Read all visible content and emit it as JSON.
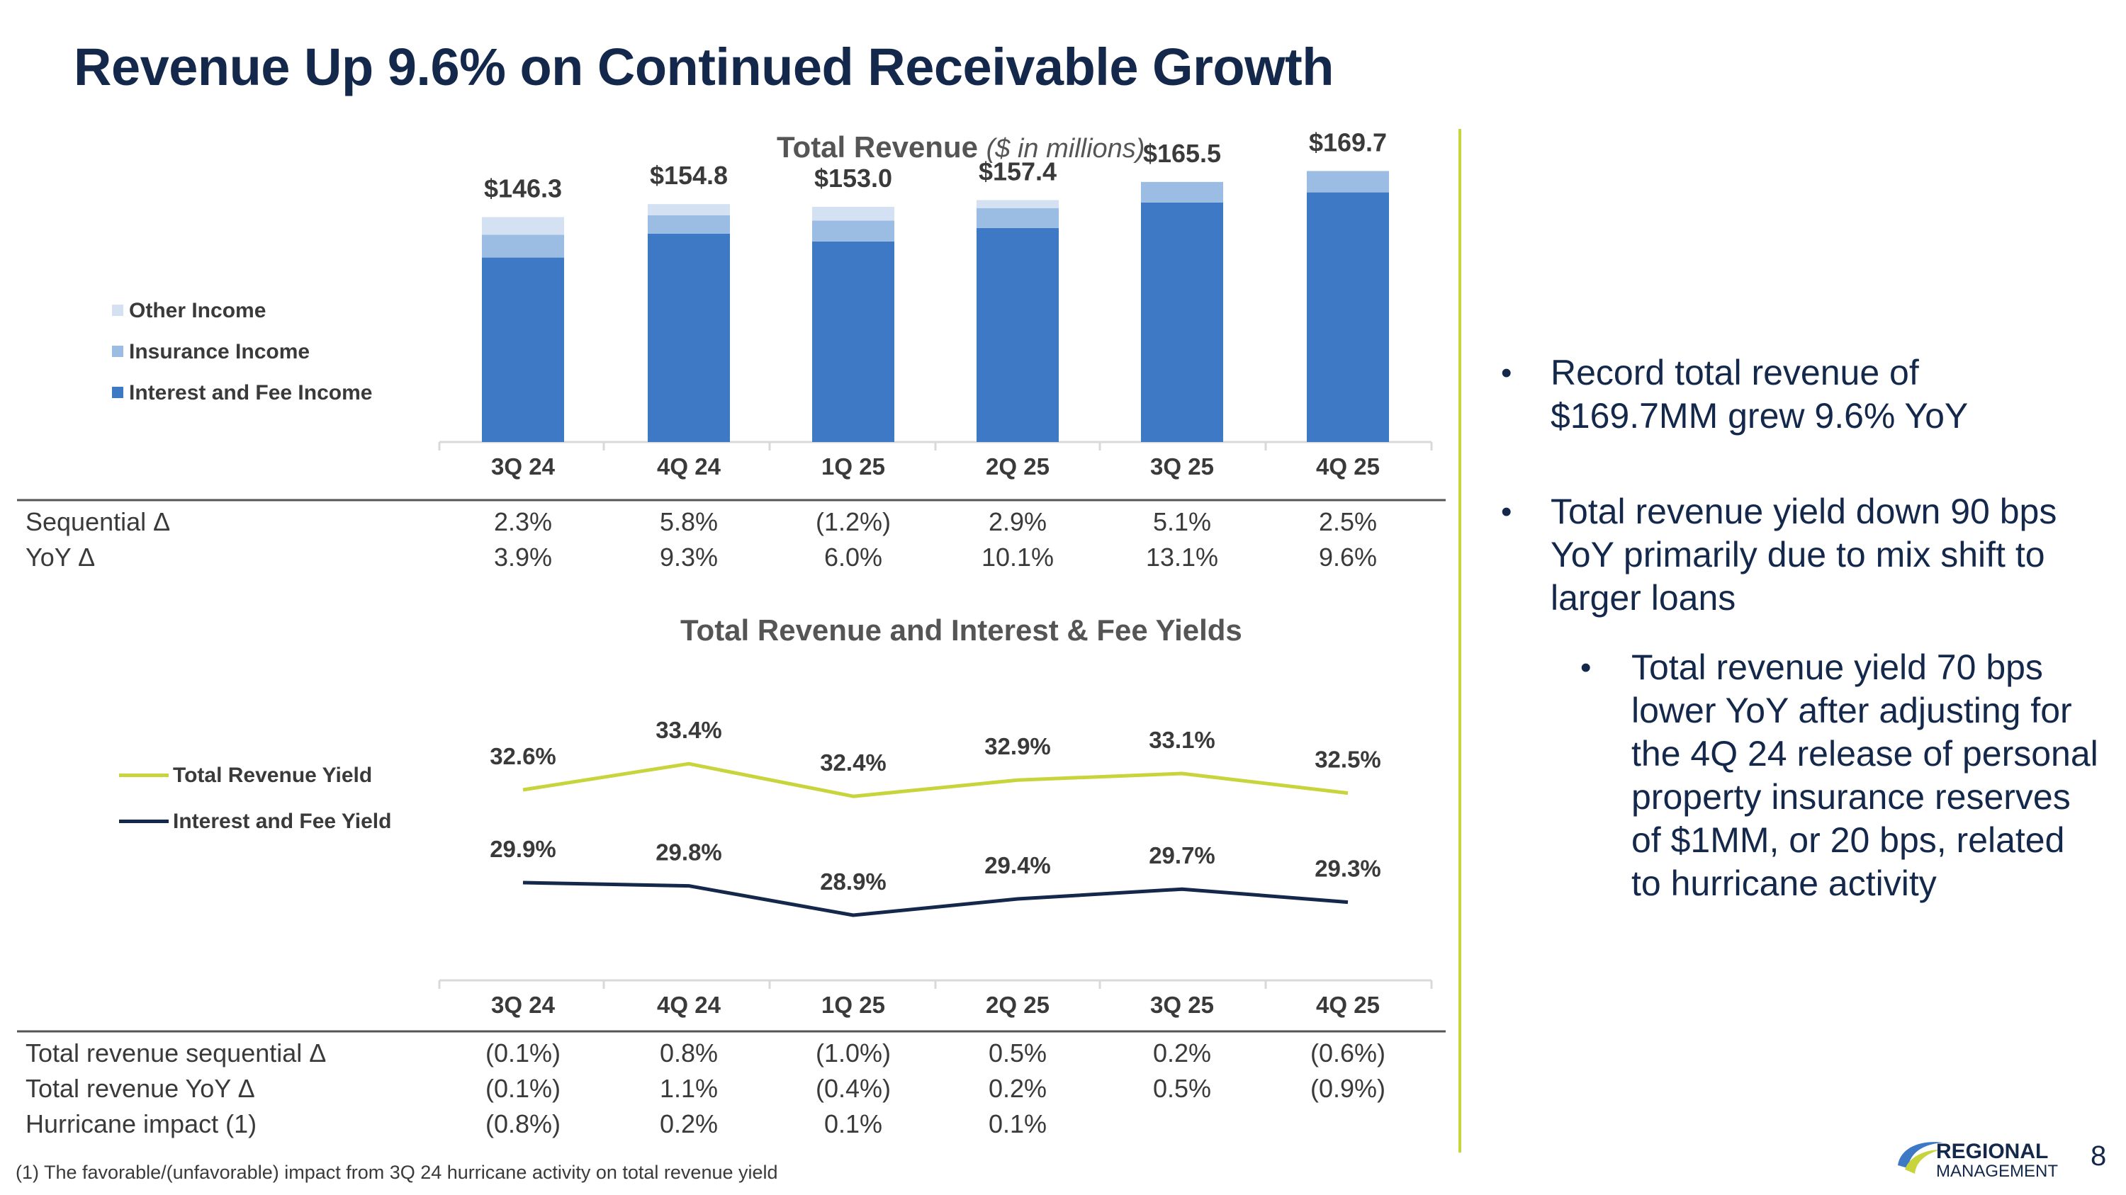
{
  "title": "Revenue Up 9.6% on Continued Receivable Growth",
  "colors": {
    "interest": "#3d79c4",
    "insurance": "#9bbde3",
    "other": "#d3e1f2",
    "total_yield_line": "#c8d43c",
    "interest_yield_line": "#14284b",
    "title": "#14284b"
  },
  "chart_data": [
    {
      "type": "bar",
      "stacked": true,
      "title": "Total Revenue",
      "subtitle": "($ in millions)",
      "categories": [
        "3Q 24",
        "4Q 24",
        "1Q 25",
        "2Q 25",
        "3Q 25",
        "4Q 25"
      ],
      "series": [
        {
          "name": "Interest and Fee Income",
          "values": [
            120.0,
            135.5,
            130.5,
            139.2,
            155.8,
            162.4
          ]
        },
        {
          "name": "Insurance Income",
          "values": [
            14.8,
            12.0,
            13.5,
            13.0,
            13.4,
            13.9
          ]
        },
        {
          "name": "Other Income",
          "values": [
            11.5,
            7.3,
            9.0,
            5.2,
            -3.7,
            -6.6
          ]
        }
      ],
      "totals": [
        146.3,
        154.8,
        153.0,
        157.4,
        165.5,
        169.7
      ],
      "total_labels": [
        "$146.3",
        "$154.8",
        "$153.0",
        "$157.4",
        "$165.5",
        "$169.7"
      ],
      "legend": [
        "Other Income",
        "Insurance Income",
        "Interest and Fee Income"
      ],
      "legend_position": "left",
      "ylim": [
        0,
        180
      ]
    },
    {
      "type": "line",
      "title": "Total Revenue and Interest & Fee Yields",
      "categories": [
        "3Q 24",
        "4Q 24",
        "1Q 25",
        "2Q 25",
        "3Q 25",
        "4Q 25"
      ],
      "series": [
        {
          "name": "Total Revenue Yield",
          "values": [
            32.6,
            33.4,
            32.4,
            32.9,
            33.1,
            32.5
          ],
          "labels": [
            "32.6%",
            "33.4%",
            "32.4%",
            "32.9%",
            "33.1%",
            "32.5%"
          ]
        },
        {
          "name": "Interest and Fee Yield",
          "values": [
            29.9,
            29.8,
            28.9,
            29.4,
            29.7,
            29.3
          ],
          "labels": [
            "29.9%",
            "29.8%",
            "28.9%",
            "29.4%",
            "29.7%",
            "29.3%"
          ]
        }
      ],
      "legend_position": "left"
    }
  ],
  "table1": {
    "rows": [
      {
        "label": "Sequential Δ",
        "values": [
          "2.3%",
          "5.8%",
          "(1.2%)",
          "2.9%",
          "5.1%",
          "2.5%"
        ]
      },
      {
        "label": "YoY Δ",
        "values": [
          "3.9%",
          "9.3%",
          "6.0%",
          "10.1%",
          "13.1%",
          "9.6%"
        ]
      }
    ]
  },
  "table2": {
    "rows": [
      {
        "label": "Total revenue sequential Δ",
        "values": [
          "(0.1%)",
          "0.8%",
          "(1.0%)",
          "0.5%",
          "0.2%",
          "(0.6%)"
        ]
      },
      {
        "label": "Total revenue YoY Δ",
        "values": [
          "(0.1%)",
          "1.1%",
          "(0.4%)",
          "0.2%",
          "0.5%",
          "(0.9%)"
        ]
      },
      {
        "label": "Hurricane impact (1)",
        "values": [
          "(0.8%)",
          "0.2%",
          "0.1%",
          "0.1%",
          "",
          ""
        ]
      }
    ]
  },
  "bullets": [
    "Record total revenue of $169.7MM grew 9.6% YoY",
    "Total revenue yield down 90 bps YoY primarily due to mix shift to larger loans"
  ],
  "sub_bullets": [
    "Total revenue yield 70 bps lower YoY after adjusting for the 4Q 24 release of personal property insurance reserves of $1MM, or 20 bps, related to hurricane activity"
  ],
  "bullet_glyph": "•",
  "footnote": "(1) The favorable/(unfavorable) impact from 3Q 24 hurricane activity on total revenue yield",
  "logo": {
    "line1": "REGIONAL",
    "line2": "MANAGEMENT",
    "icon": "regional-swoosh-logo"
  },
  "page_number": "8"
}
